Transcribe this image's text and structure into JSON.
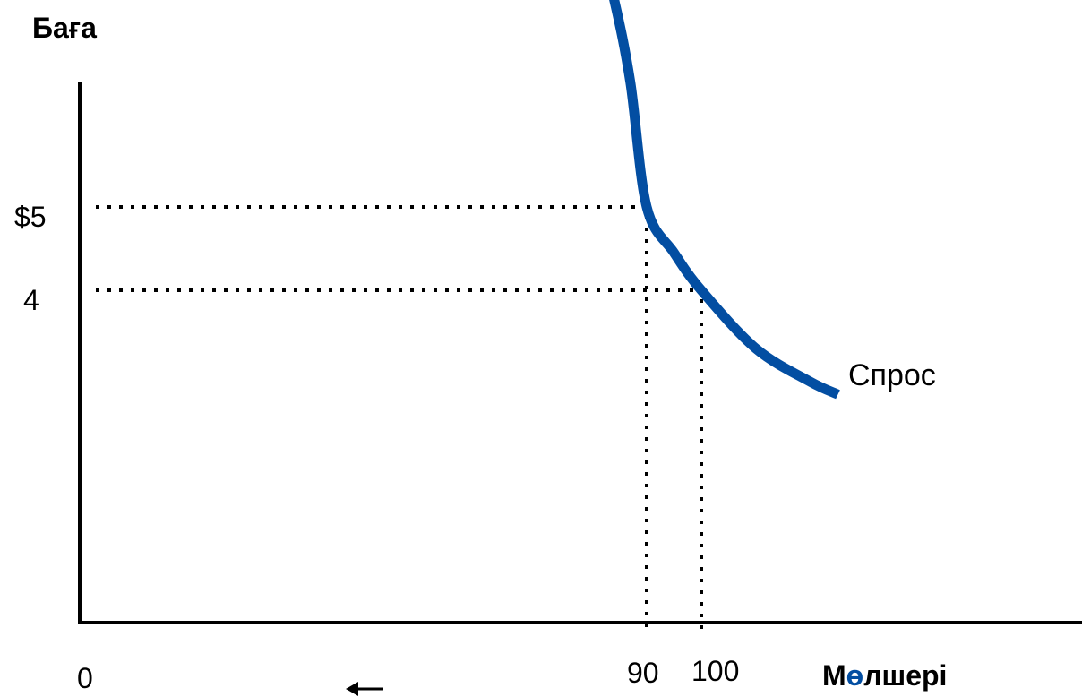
{
  "chart_data": {
    "type": "line",
    "ylabel": "Баға",
    "xlabel_parts": [
      "М",
      "ө",
      "лшері"
    ],
    "origin_label": "0",
    "y_ticks": [
      {
        "value": 5,
        "label": "$5"
      },
      {
        "value": 4,
        "label": "4"
      }
    ],
    "x_ticks": [
      {
        "value": 90,
        "label": "90"
      },
      {
        "value": 100,
        "label": "100"
      }
    ],
    "series": [
      {
        "name": "Спрос",
        "color": "#034EA2",
        "points": [
          [
            80,
            8.5
          ],
          [
            84,
            7.5
          ],
          [
            87,
            6.5
          ],
          [
            90,
            5
          ],
          [
            95,
            4.45
          ],
          [
            100,
            4
          ],
          [
            110,
            3.3
          ],
          [
            120,
            2.9
          ],
          [
            125,
            2.75
          ]
        ]
      }
    ],
    "guides": [
      {
        "x": 90,
        "y": 5
      },
      {
        "x": 100,
        "y": 4
      }
    ],
    "grid": false,
    "accent_color": "#034EA2",
    "annotation": "arrow-left"
  }
}
